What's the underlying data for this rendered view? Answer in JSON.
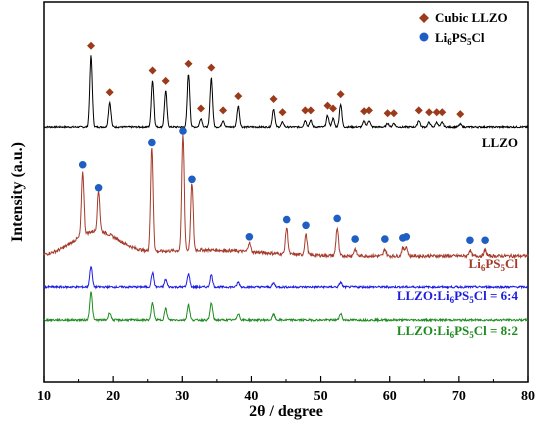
{
  "chart_data": {
    "type": "line",
    "xlabel": "2θ / degree",
    "ylabel": "Intensity (a.u.)",
    "xlim": [
      10,
      80
    ],
    "xticks": [
      "10",
      "20",
      "30",
      "40",
      "50",
      "60",
      "70",
      "80"
    ],
    "grid": false,
    "legend_position": "top-right",
    "legend": [
      {
        "text": "Cubic LLZO",
        "marker": "diamond",
        "color": "#9b3b1b"
      },
      {
        "text": "Li6PS5Cl",
        "marker": "circle",
        "color": "#1f5fc4"
      }
    ],
    "series": [
      {
        "name": "LLZO",
        "color": "#000000",
        "peaks": [
          {
            "x": 16.8,
            "h": 75
          },
          {
            "x": 19.5,
            "h": 26
          },
          {
            "x": 25.7,
            "h": 49
          },
          {
            "x": 27.6,
            "h": 38
          },
          {
            "x": 30.9,
            "h": 56
          },
          {
            "x": 32.7,
            "h": 9
          },
          {
            "x": 34.2,
            "h": 52
          },
          {
            "x": 35.9,
            "h": 7
          },
          {
            "x": 38.1,
            "h": 22
          },
          {
            "x": 43.2,
            "h": 19
          },
          {
            "x": 44.5,
            "h": 5
          },
          {
            "x": 47.8,
            "h": 7
          },
          {
            "x": 48.6,
            "h": 7
          },
          {
            "x": 51.0,
            "h": 12
          },
          {
            "x": 51.8,
            "h": 9
          },
          {
            "x": 52.9,
            "h": 24
          },
          {
            "x": 56.3,
            "h": 6
          },
          {
            "x": 57.0,
            "h": 7
          },
          {
            "x": 59.7,
            "h": 4
          },
          {
            "x": 60.6,
            "h": 4
          },
          {
            "x": 64.2,
            "h": 7
          },
          {
            "x": 65.7,
            "h": 5
          },
          {
            "x": 66.8,
            "h": 5
          },
          {
            "x": 67.6,
            "h": 5
          },
          {
            "x": 70.2,
            "h": 3
          }
        ]
      },
      {
        "name": "Li6PS5Cl",
        "color": "#a53a2b",
        "peaks": [
          {
            "x": 15.6,
            "h": 55
          },
          {
            "x": 17.9,
            "h": 35
          },
          {
            "x": 25.6,
            "h": 90
          },
          {
            "x": 30.1,
            "h": 100
          },
          {
            "x": 31.4,
            "h": 58
          },
          {
            "x": 39.7,
            "h": 8
          },
          {
            "x": 45.1,
            "h": 23
          },
          {
            "x": 47.9,
            "h": 18
          },
          {
            "x": 52.4,
            "h": 24
          },
          {
            "x": 55.0,
            "h": 6
          },
          {
            "x": 59.3,
            "h": 6
          },
          {
            "x": 61.9,
            "h": 7
          },
          {
            "x": 62.4,
            "h": 8
          },
          {
            "x": 71.6,
            "h": 5
          },
          {
            "x": 73.8,
            "h": 5
          }
        ]
      },
      {
        "name": "LLZO:Li6PS5Cl = 6:4",
        "color": "#1c1ce0",
        "peaks": [
          {
            "x": 16.8,
            "h": 22
          },
          {
            "x": 25.7,
            "h": 15
          },
          {
            "x": 27.6,
            "h": 8
          },
          {
            "x": 30.9,
            "h": 14
          },
          {
            "x": 34.2,
            "h": 13
          },
          {
            "x": 38.1,
            "h": 5
          },
          {
            "x": 43.2,
            "h": 4
          },
          {
            "x": 52.9,
            "h": 5
          }
        ]
      },
      {
        "name": "LLZO:Li6PS5Cl = 8:2",
        "color": "#1e8b1e",
        "peaks": [
          {
            "x": 16.8,
            "h": 30
          },
          {
            "x": 19.5,
            "h": 8
          },
          {
            "x": 25.7,
            "h": 18
          },
          {
            "x": 27.6,
            "h": 12
          },
          {
            "x": 30.9,
            "h": 16
          },
          {
            "x": 34.2,
            "h": 18
          },
          {
            "x": 38.1,
            "h": 7
          },
          {
            "x": 43.2,
            "h": 6
          },
          {
            "x": 52.9,
            "h": 7
          }
        ]
      }
    ],
    "annotations": [
      {
        "main": "LLZO",
        "sub": "",
        "tail": "",
        "color": "#000000"
      },
      {
        "main": "Li",
        "sub": "6",
        "mid": "PS",
        "sub2": "5",
        "tail": "Cl",
        "color": "#a53a2b"
      },
      {
        "main": "LLZO:Li",
        "sub": "6",
        "mid": "PS",
        "sub2": "5",
        "tail": "Cl = 6:4",
        "color": "#1c1ce0"
      },
      {
        "main": "LLZO:Li",
        "sub": "6",
        "mid": "PS",
        "sub2": "5",
        "tail": "Cl = 8:2",
        "color": "#1e8b1e"
      }
    ],
    "llzo_markers": [
      16.8,
      19.5,
      25.7,
      27.6,
      30.9,
      32.7,
      34.2,
      35.9,
      38.1,
      43.2,
      44.5,
      47.8,
      48.6,
      51.0,
      51.8,
      52.9,
      56.3,
      57.0,
      59.7,
      60.6,
      64.2,
      65.7,
      66.8,
      67.6,
      70.2
    ],
    "lpsc_markers": [
      15.6,
      17.9,
      25.6,
      30.1,
      31.4,
      39.7,
      45.1,
      47.9,
      52.4,
      55.0,
      59.3,
      61.9,
      62.4,
      71.6,
      73.8
    ]
  }
}
